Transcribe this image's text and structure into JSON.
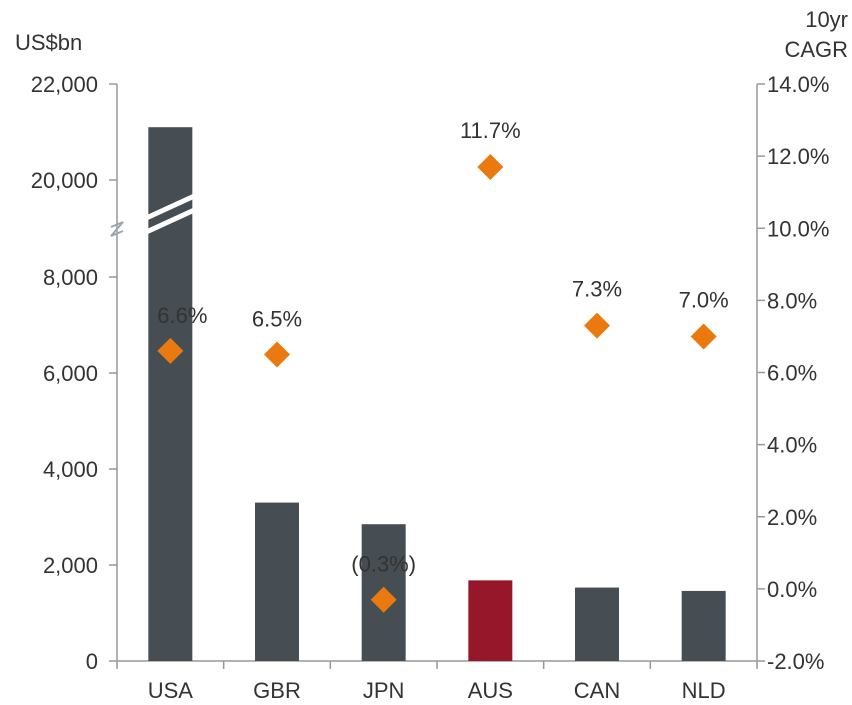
{
  "chart_data": {
    "type": "bar",
    "categories": [
      "USA",
      "GBR",
      "JPN",
      "AUS",
      "CAN",
      "NLD"
    ],
    "series": [
      {
        "values": [
          21100,
          3300,
          2850,
          1680,
          1530,
          1460
        ],
        "kind": "bar",
        "axis": "left",
        "colors": [
          "#464e54",
          "#464e54",
          "#464e54",
          "#96172a",
          "#464e54",
          "#464e54"
        ]
      },
      {
        "values": [
          6.6,
          6.5,
          -0.3,
          11.7,
          7.3,
          7.0
        ],
        "kind": "marker",
        "marker": "diamond",
        "axis": "right",
        "color": "#ea7a10",
        "labels": [
          "6.6%",
          "6.5%",
          "(0.3%)",
          "11.7%",
          "7.3%",
          "7.0%"
        ]
      }
    ],
    "left_axis": {
      "label": "US$bn",
      "ticks": [
        "0",
        "2,000",
        "4,000",
        "6,000",
        "8,000",
        "20,000",
        "22,000"
      ],
      "tick_values": [
        0,
        2000,
        4000,
        6000,
        8000,
        20000,
        22000
      ],
      "break": "between 8,000 and 20,000"
    },
    "right_axis": {
      "label_line1": "10yr",
      "label_line2": "CAGR",
      "ticks": [
        "-2.0%",
        "0.0%",
        "2.0%",
        "4.0%",
        "6.0%",
        "8.0%",
        "10.0%",
        "12.0%",
        "14.0%"
      ],
      "tick_values": [
        -2,
        0,
        2,
        4,
        6,
        8,
        10,
        12,
        14
      ],
      "ylim": [
        -2,
        14
      ]
    },
    "grid": false,
    "legend": "none"
  }
}
